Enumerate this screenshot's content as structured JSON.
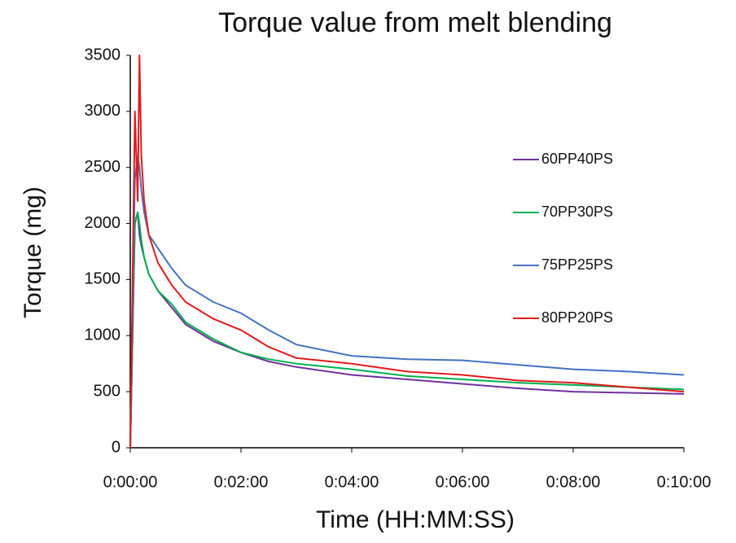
{
  "chart_data": {
    "type": "line",
    "title": "Torque value from melt blending",
    "xlabel": "Time (HH:MM:SS)",
    "ylabel": "Torque (mg)",
    "x": [
      0,
      5,
      8,
      10,
      12,
      15,
      20,
      30,
      45,
      60,
      90,
      120,
      150,
      180,
      240,
      300,
      360,
      420,
      480,
      540,
      600
    ],
    "series": [
      {
        "name": "60PP40PS",
        "color": "#7030a0",
        "values": [
          0,
          2000,
          2100,
          1900,
          1800,
          1700,
          1550,
          1400,
          1250,
          1100,
          950,
          850,
          770,
          720,
          650,
          610,
          570,
          530,
          500,
          490,
          480
        ]
      },
      {
        "name": "70PP30PS",
        "color": "#00b050",
        "values": [
          0,
          2000,
          2100,
          2000,
          1850,
          1700,
          1550,
          1400,
          1280,
          1120,
          970,
          850,
          790,
          750,
          700,
          640,
          610,
          580,
          560,
          540,
          520
        ]
      },
      {
        "name": "75PP25PS",
        "color": "#4472c4",
        "values": [
          0,
          2400,
          2600,
          2500,
          2300,
          2100,
          1900,
          1780,
          1600,
          1450,
          1300,
          1200,
          1050,
          920,
          820,
          790,
          780,
          740,
          700,
          680,
          650
        ]
      },
      {
        "name": "80PP20PS",
        "color": "#e31a1c",
        "values": [
          0,
          3000,
          2200,
          3500,
          2600,
          2200,
          1900,
          1650,
          1450,
          1300,
          1150,
          1050,
          900,
          800,
          750,
          680,
          650,
          600,
          580,
          540,
          500
        ]
      }
    ],
    "xlim": [
      0,
      600
    ],
    "xticks": [
      {
        "value": 0,
        "label": "0:00:00"
      },
      {
        "value": 120,
        "label": "0:02:00"
      },
      {
        "value": 240,
        "label": "0:04:00"
      },
      {
        "value": 360,
        "label": "0:06:00"
      },
      {
        "value": 480,
        "label": "0:08:00"
      },
      {
        "value": 600,
        "label": "0:10:00"
      }
    ],
    "ylim": [
      0,
      3500
    ],
    "yticks": [
      0,
      500,
      1000,
      1500,
      2000,
      2500,
      3000,
      3500
    ],
    "grid": false,
    "legend": "right"
  }
}
